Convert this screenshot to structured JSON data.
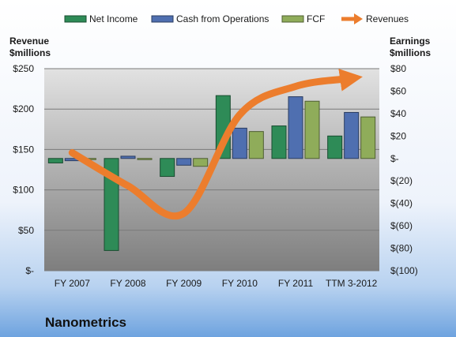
{
  "chart_data": {
    "type": "bar",
    "company_name": "Nanometrics",
    "categories": [
      "FY 2007",
      "FY 2008",
      "FY 2009",
      "FY 2010",
      "FY 2011",
      "TTM 3-2012"
    ],
    "series": [
      {
        "name": "Net Income",
        "axis": "right",
        "color": "#2e8b57",
        "values": [
          -4,
          -82,
          -16,
          56,
          29,
          20
        ]
      },
      {
        "name": "Cash from Operations",
        "axis": "right",
        "color": "#4f6fb0",
        "values": [
          -2,
          2,
          -6,
          27,
          55,
          41
        ]
      },
      {
        "name": "FCF",
        "axis": "right",
        "color": "#8fac5a",
        "values": [
          -1,
          -1,
          -7,
          24,
          51,
          37
        ]
      }
    ],
    "line_series": {
      "name": "Revenues",
      "axis": "left",
      "color": "#ec7d2d",
      "values": [
        146,
        105,
        71,
        193,
        228,
        238
      ]
    },
    "left_axis": {
      "title_lines": [
        "Revenue",
        "$millions"
      ],
      "ylim": [
        0,
        250
      ],
      "ticks": [
        0,
        50,
        100,
        150,
        200,
        250
      ],
      "tick_labels": [
        "$-",
        "$50",
        "$100",
        "$150",
        "$200",
        "$250"
      ]
    },
    "right_axis": {
      "title_lines": [
        "Earnings",
        "$millions"
      ],
      "ylim": [
        -100,
        80
      ],
      "ticks": [
        -100,
        -80,
        -60,
        -40,
        -20,
        0,
        20,
        40,
        60,
        80
      ],
      "tick_labels": [
        "$(100)",
        "$(80)",
        "$(60)",
        "$(40)",
        "$(20)",
        "$-",
        "$20",
        "$40",
        "$60",
        "$80"
      ]
    },
    "legend": {
      "position": "top",
      "entries": [
        "Net Income",
        "Cash from Operations",
        "FCF",
        "Revenues"
      ]
    },
    "grid": true
  }
}
